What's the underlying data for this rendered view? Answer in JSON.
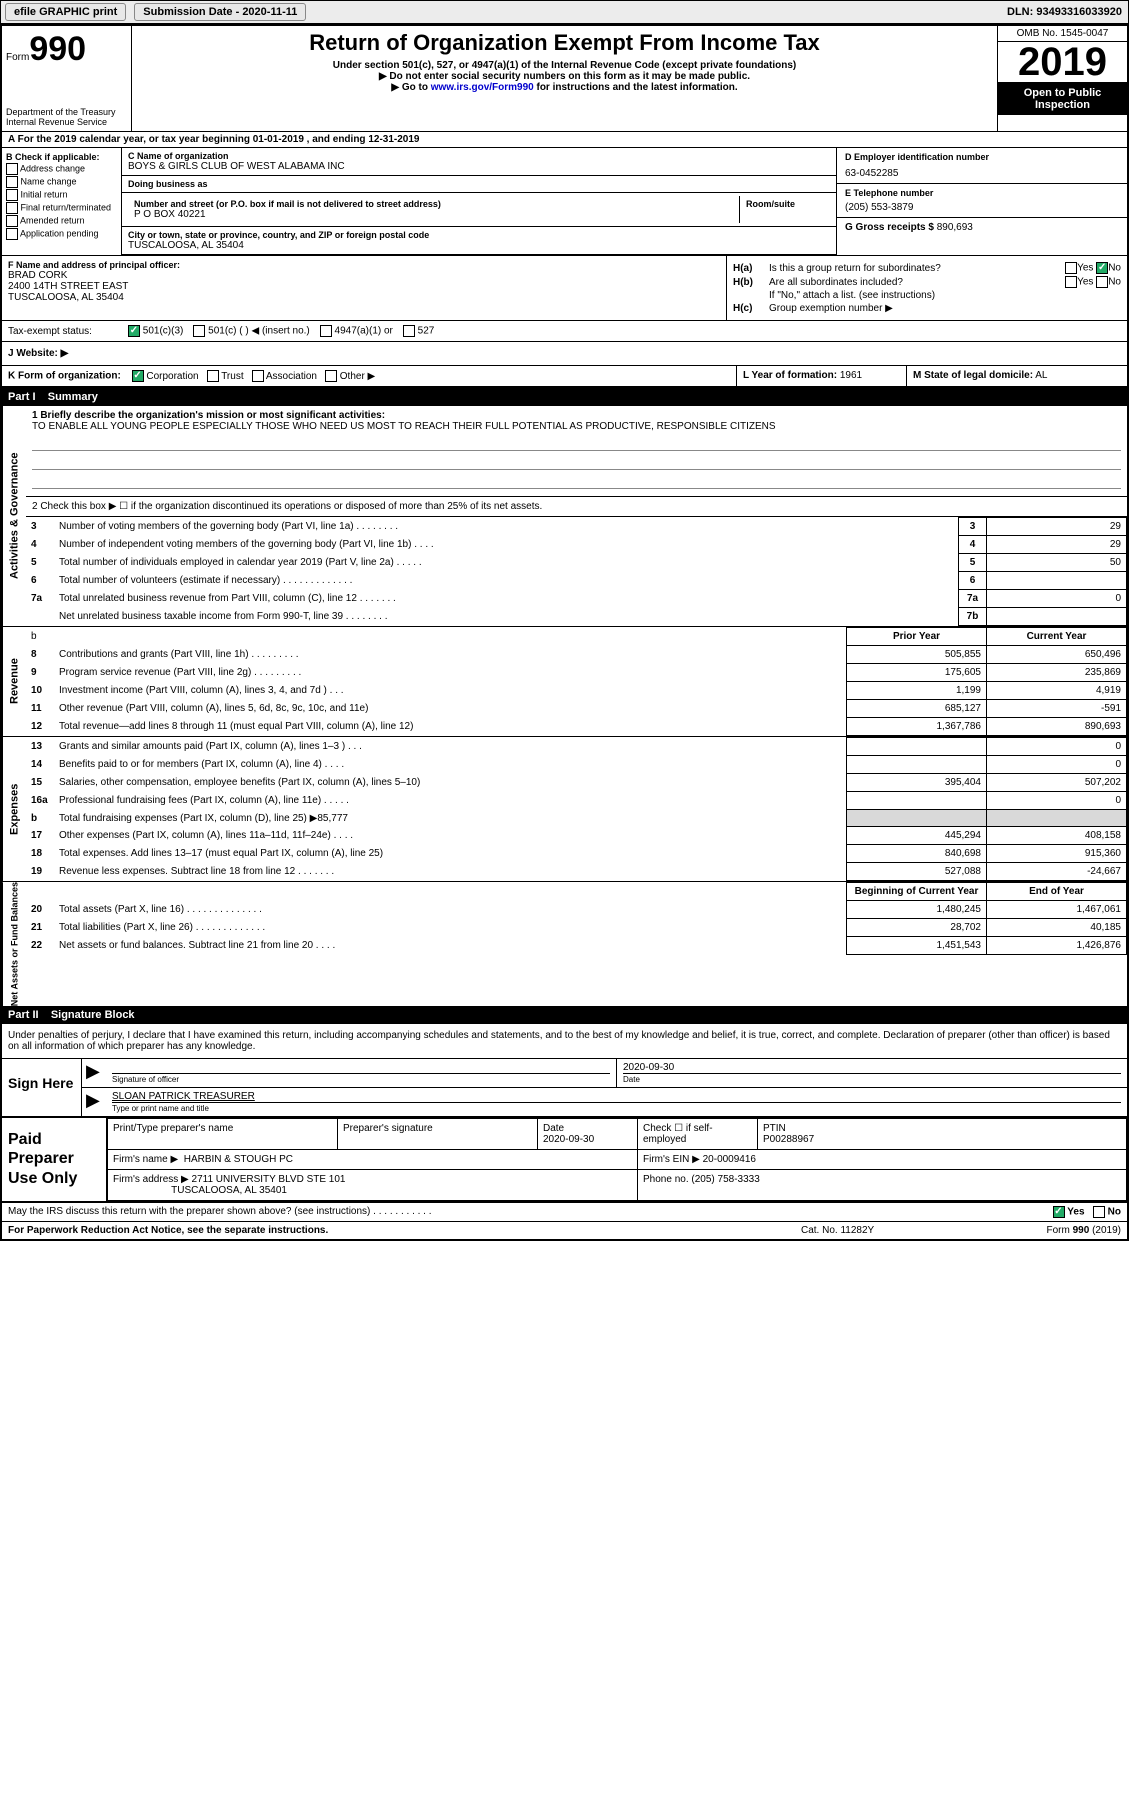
{
  "topbar": {
    "efile": "efile GRAPHIC print",
    "submission_label": "Submission Date - 2020-11-11",
    "dln": "DLN: 93493316033920"
  },
  "header": {
    "form_word": "Form",
    "form_num": "990",
    "dept1": "Department of the Treasury",
    "dept2": "Internal Revenue Service",
    "title": "Return of Organization Exempt From Income Tax",
    "subtitle": "Under section 501(c), 527, or 4947(a)(1) of the Internal Revenue Code (except private foundations)",
    "note1": "Do not enter social security numbers on this form as it may be made public.",
    "note2_pre": "Go to ",
    "note2_link": "www.irs.gov/Form990",
    "note2_post": " for instructions and the latest information.",
    "omb": "OMB No. 1545-0047",
    "year": "2019",
    "public1": "Open to Public",
    "public2": "Inspection"
  },
  "row_a": "A For the 2019 calendar year, or tax year beginning 01-01-2019   , and ending 12-31-2019",
  "col_b": {
    "heading": "B Check if applicable:",
    "opts": [
      "Address change",
      "Name change",
      "Initial return",
      "Final return/terminated",
      "Amended return",
      "Application pending"
    ]
  },
  "col_c": {
    "name_label": "C Name of organization",
    "name": "BOYS & GIRLS CLUB OF WEST ALABAMA INC",
    "dba_label": "Doing business as",
    "dba": "",
    "street_label": "Number and street (or P.O. box if mail is not delivered to street address)",
    "room_label": "Room/suite",
    "street": "P O BOX 40221",
    "city_label": "City or town, state or province, country, and ZIP or foreign postal code",
    "city": "TUSCALOOSA, AL  35404"
  },
  "col_d": {
    "ein_label": "D Employer identification number",
    "ein": "63-0452285",
    "phone_label": "E Telephone number",
    "phone": "(205) 553-3879",
    "gross_label": "G Gross receipts $",
    "gross": "890,693"
  },
  "col_f": {
    "label": "F  Name and address of principal officer:",
    "name": "BRAD CORK",
    "addr1": "2400 14TH STREET EAST",
    "addr2": "TUSCALOOSA, AL  35404"
  },
  "col_h": {
    "ha": "Is this a group return for subordinates?",
    "ha_yes": "Yes",
    "ha_no": "No",
    "hb": "Are all subordinates included?",
    "hb_yes": "Yes",
    "hb_no": "No",
    "hb_note": "If \"No,\" attach a list. (see instructions)",
    "hc": "Group exemption number ▶"
  },
  "status": {
    "label": "Tax-exempt status:",
    "o1": "501(c)(3)",
    "o2": "501(c) (   ) ◀ (insert no.)",
    "o3": "4947(a)(1) or",
    "o4": "527"
  },
  "website": {
    "label": "J   Website: ▶"
  },
  "klm": {
    "k": "K Form of organization:",
    "k_opts": [
      "Corporation",
      "Trust",
      "Association",
      "Other ▶"
    ],
    "l_label": "L Year of formation:",
    "l_val": "1961",
    "m_label": "M State of legal domicile:",
    "m_val": "AL"
  },
  "part1": {
    "bar": "Part I",
    "bar_title": "Summary",
    "tab1": "Activities & Governance",
    "tab2": "Revenue",
    "tab3": "Expenses",
    "tab4": "Net Assets or Fund Balances",
    "q1": "1  Briefly describe the organization's mission or most significant activities:",
    "q1_text": "TO ENABLE ALL YOUNG PEOPLE ESPECIALLY THOSE WHO NEED US MOST TO REACH THEIR FULL POTENTIAL AS PRODUCTIVE, RESPONSIBLE CITIZENS",
    "q2": "2  Check this box ▶ ☐ if the organization discontinued its operations or disposed of more than 25% of its net assets.",
    "hdr_prior": "Prior Year",
    "hdr_current": "Current Year",
    "hdr_beg": "Beginning of Current Year",
    "hdr_end": "End of Year",
    "lines_gov": [
      {
        "n": "3",
        "t": "Number of voting members of the governing body (Part VI, line 1a)  .  .  .  .  .  .  .  .",
        "box": "3",
        "v": "29"
      },
      {
        "n": "4",
        "t": "Number of independent voting members of the governing body (Part VI, line 1b)  .  .  .  .",
        "box": "4",
        "v": "29"
      },
      {
        "n": "5",
        "t": "Total number of individuals employed in calendar year 2019 (Part V, line 2a)  .  .  .  .  .",
        "box": "5",
        "v": "50"
      },
      {
        "n": "6",
        "t": "Total number of volunteers (estimate if necessary)   .  .  .  .  .  .  .  .  .  .  .  .  .",
        "box": "6",
        "v": ""
      },
      {
        "n": "7a",
        "t": "Total unrelated business revenue from Part VIII, column (C), line 12  .  .  .  .  .  .  .",
        "box": "7a",
        "v": "0"
      },
      {
        "n": "",
        "t": "Net unrelated business taxable income from Form 990-T, line 39   .  .  .  .  .  .  .  .",
        "box": "7b",
        "v": ""
      }
    ],
    "lines_rev": [
      {
        "n": "8",
        "t": "Contributions and grants (Part VIII, line 1h)   .  .  .  .  .  .  .  .  .",
        "p": "505,855",
        "c": "650,496"
      },
      {
        "n": "9",
        "t": "Program service revenue (Part VIII, line 2g)   .  .  .  .  .  .  .  .  .",
        "p": "175,605",
        "c": "235,869"
      },
      {
        "n": "10",
        "t": "Investment income (Part VIII, column (A), lines 3, 4, and 7d )   .  .  .",
        "p": "1,199",
        "c": "4,919"
      },
      {
        "n": "11",
        "t": "Other revenue (Part VIII, column (A), lines 5, 6d, 8c, 9c, 10c, and 11e)",
        "p": "685,127",
        "c": "-591"
      },
      {
        "n": "12",
        "t": "Total revenue—add lines 8 through 11 (must equal Part VIII, column (A), line 12)",
        "p": "1,367,786",
        "c": "890,693"
      }
    ],
    "lines_exp": [
      {
        "n": "13",
        "t": "Grants and similar amounts paid (Part IX, column (A), lines 1–3 )  .  .  .",
        "p": "",
        "c": "0"
      },
      {
        "n": "14",
        "t": "Benefits paid to or for members (Part IX, column (A), line 4)   .  .  .  .",
        "p": "",
        "c": "0"
      },
      {
        "n": "15",
        "t": "Salaries, other compensation, employee benefits (Part IX, column (A), lines 5–10)",
        "p": "395,404",
        "c": "507,202"
      },
      {
        "n": "16a",
        "t": "Professional fundraising fees (Part IX, column (A), line 11e)  .  .  .  .  .",
        "p": "",
        "c": "0"
      },
      {
        "n": "b",
        "t": "Total fundraising expenses (Part IX, column (D), line 25) ▶85,777",
        "p": "SHADE",
        "c": "SHADE"
      },
      {
        "n": "17",
        "t": "Other expenses (Part IX, column (A), lines 11a–11d, 11f–24e)  .  .  .  .",
        "p": "445,294",
        "c": "408,158"
      },
      {
        "n": "18",
        "t": "Total expenses. Add lines 13–17 (must equal Part IX, column (A), line 25)",
        "p": "840,698",
        "c": "915,360"
      },
      {
        "n": "19",
        "t": "Revenue less expenses. Subtract line 18 from line 12  .  .  .  .  .  .  .",
        "p": "527,088",
        "c": "-24,667"
      }
    ],
    "lines_net": [
      {
        "n": "20",
        "t": "Total assets (Part X, line 16)  .  .  .  .  .  .  .  .  .  .  .  .  .  .",
        "p": "1,480,245",
        "c": "1,467,061"
      },
      {
        "n": "21",
        "t": "Total liabilities (Part X, line 26)  .  .  .  .  .  .  .  .  .  .  .  .  .",
        "p": "28,702",
        "c": "40,185"
      },
      {
        "n": "22",
        "t": "Net assets or fund balances. Subtract line 21 from line 20    .  .  .  .",
        "p": "1,451,543",
        "c": "1,426,876"
      }
    ]
  },
  "part2": {
    "bar": "Part II",
    "bar_title": "Signature Block",
    "under": "Under penalties of perjury, I declare that I have examined this return, including accompanying schedules and statements, and to the best of my knowledge and belief, it is true, correct, and complete. Declaration of preparer (other than officer) is based on all information of which preparer has any knowledge.",
    "sign_here": "Sign Here",
    "sig_officer": "Signature of officer",
    "sig_date_label": "Date",
    "sig_date": "2020-09-30",
    "sig_name": "SLOAN PATRICK TREASURER",
    "sig_name_label": "Type or print name and title",
    "prep": "Paid Preparer Use Only",
    "prep_name_label": "Print/Type preparer's name",
    "prep_sig_label": "Preparer's signature",
    "prep_date_label": "Date",
    "prep_date": "2020-09-30",
    "prep_check": "Check ☐ if self-employed",
    "ptin_label": "PTIN",
    "ptin": "P00288967",
    "firm_name_label": "Firm's name     ▶",
    "firm_name": "HARBIN & STOUGH PC",
    "firm_ein_label": "Firm's EIN ▶",
    "firm_ein": "20-0009416",
    "firm_addr_label": "Firm's address ▶",
    "firm_addr1": "2711 UNIVERSITY BLVD STE 101",
    "firm_addr2": "TUSCALOOSA, AL  35401",
    "firm_phone_label": "Phone no.",
    "firm_phone": "(205) 758-3333",
    "discuss": "May the IRS discuss this return with the preparer shown above? (see instructions)   .  .  .  .  .  .  .  .  .  .  .",
    "discuss_yes": "Yes",
    "discuss_no": "No"
  },
  "footer": {
    "pra": "For Paperwork Reduction Act Notice, see the separate instructions.",
    "cat": "Cat. No. 11282Y",
    "form": "Form 990 (2019)"
  },
  "colors": {
    "bar_bg": "#000000",
    "bar_fg": "#ffffff",
    "shade": "#d9d9d9",
    "check_on": "#2aa76a"
  }
}
